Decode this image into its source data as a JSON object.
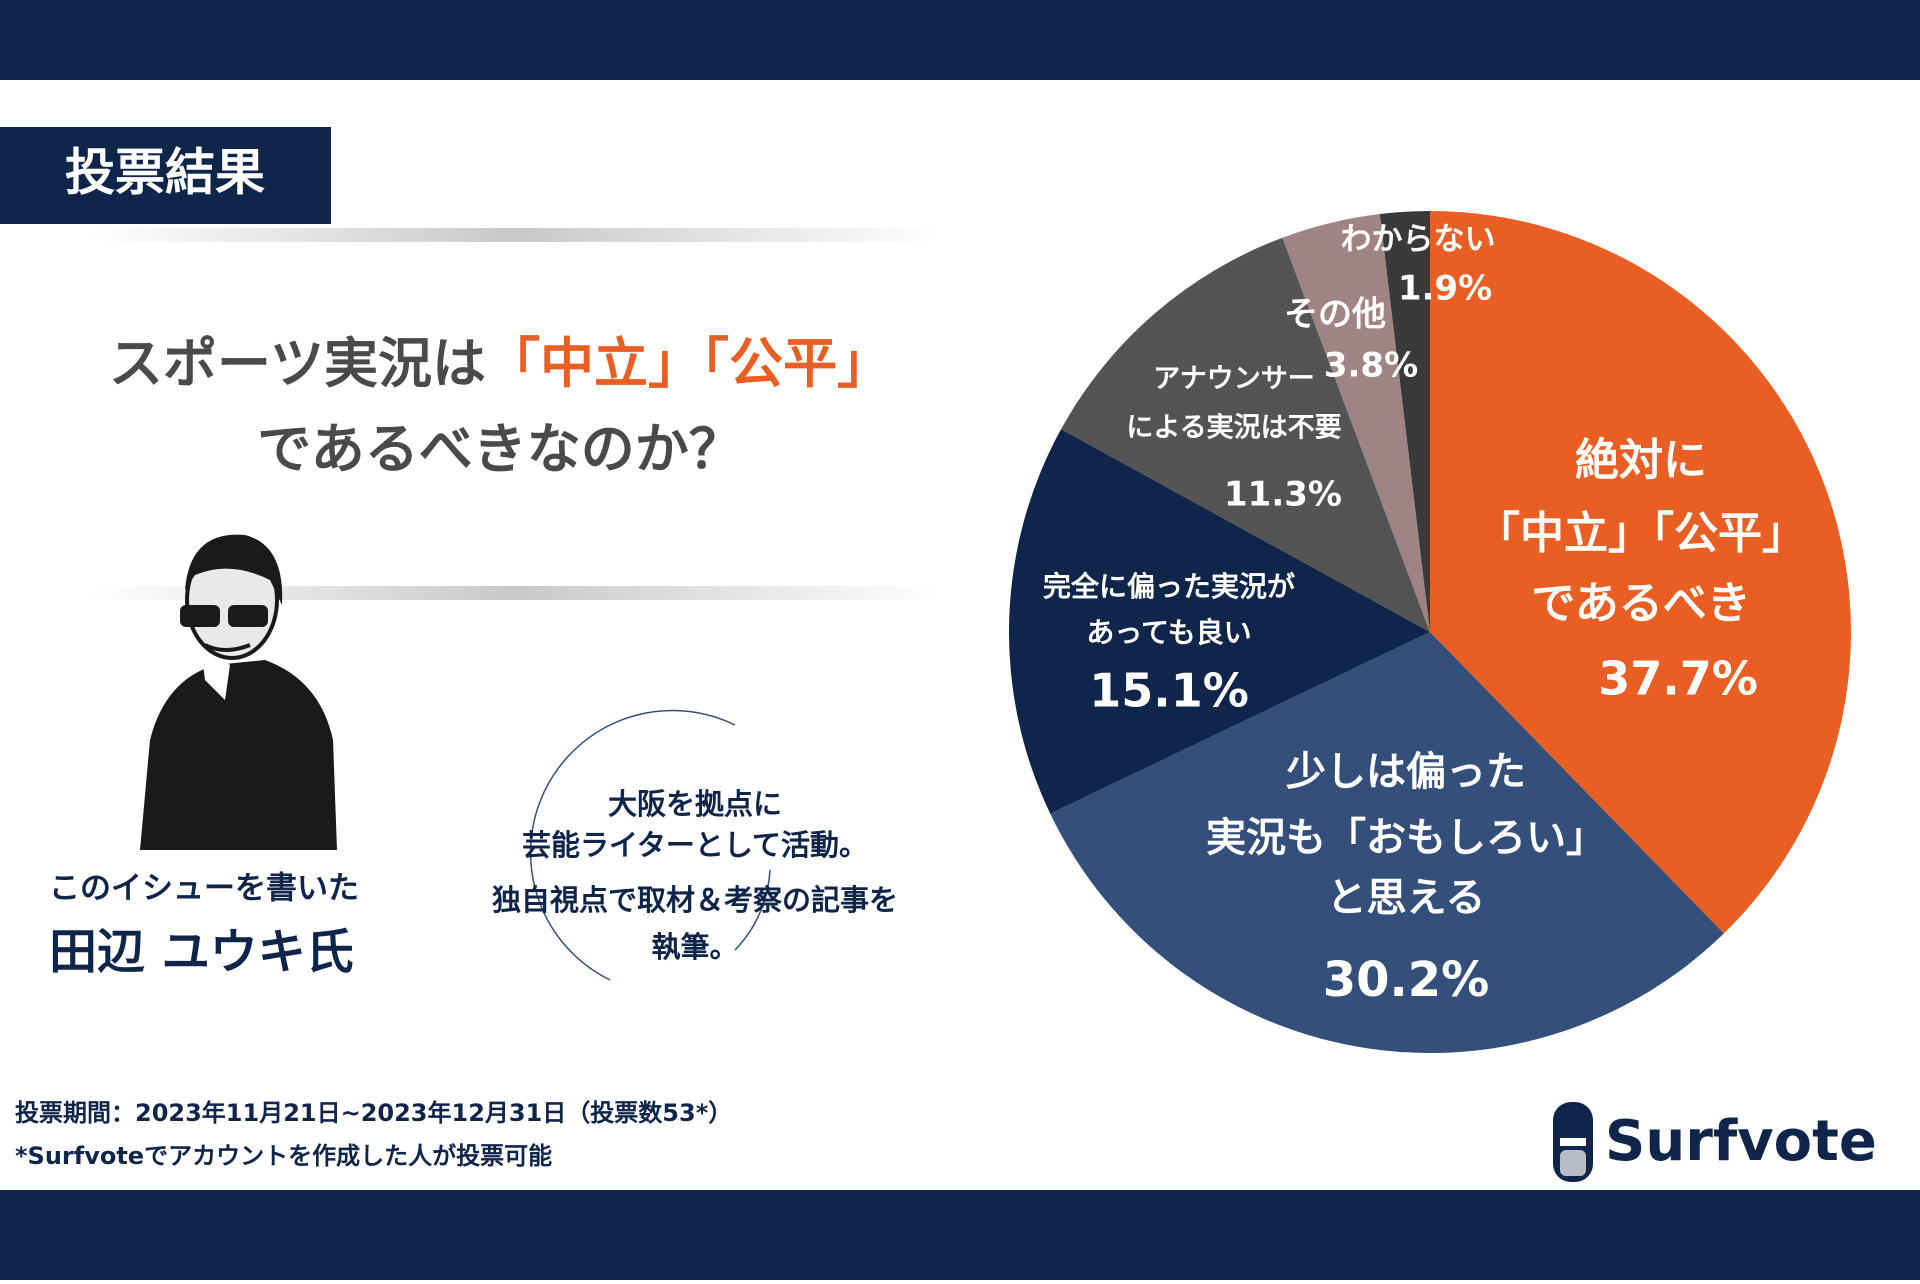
{
  "header": {
    "label": "投票結果",
    "title_line1": [
      "スポーツ実況は",
      "「中立」",
      "「公平」"
    ],
    "title_line2": "であるべきなのか？"
  },
  "author": {
    "intro": "このイシューを書いた",
    "name": "田辺 ユウキ氏",
    "bio": [
      "大阪を拠点に",
      "芸能ライターとして活動。",
      "独自視点で取材＆考察の記事を",
      "執筆。"
    ]
  },
  "footer": {
    "period": "投票期間：2023年11月21日~2023年12月31日（投票数53*）",
    "note": "*Surfvoteでアカウントを作成した人が投票可能",
    "brand": "Surfvote"
  },
  "chart_data": {
    "type": "pie",
    "categories": [
      [
        "絶対に",
        "「中立」「公平」",
        "であるべき"
      ],
      [
        "少しは偏った",
        "実況も「おもしろい」",
        "と思える"
      ],
      [
        "完全に偏った実況が",
        "あっても良い"
      ],
      [
        "アナウンサー",
        "による実況は不要"
      ],
      [
        "その他"
      ],
      [
        "わからない"
      ]
    ],
    "values": [
      37.7,
      30.2,
      15.1,
      11.3,
      3.8,
      1.9
    ],
    "value_labels": [
      "37.7%",
      "30.2%",
      "15.1%",
      "11.3%",
      "3.8%",
      "1.9%"
    ],
    "colors": [
      "#e95e22",
      "#34507a",
      "#0f2549",
      "#545454",
      "#a08484",
      "#3a3a3a"
    ]
  }
}
